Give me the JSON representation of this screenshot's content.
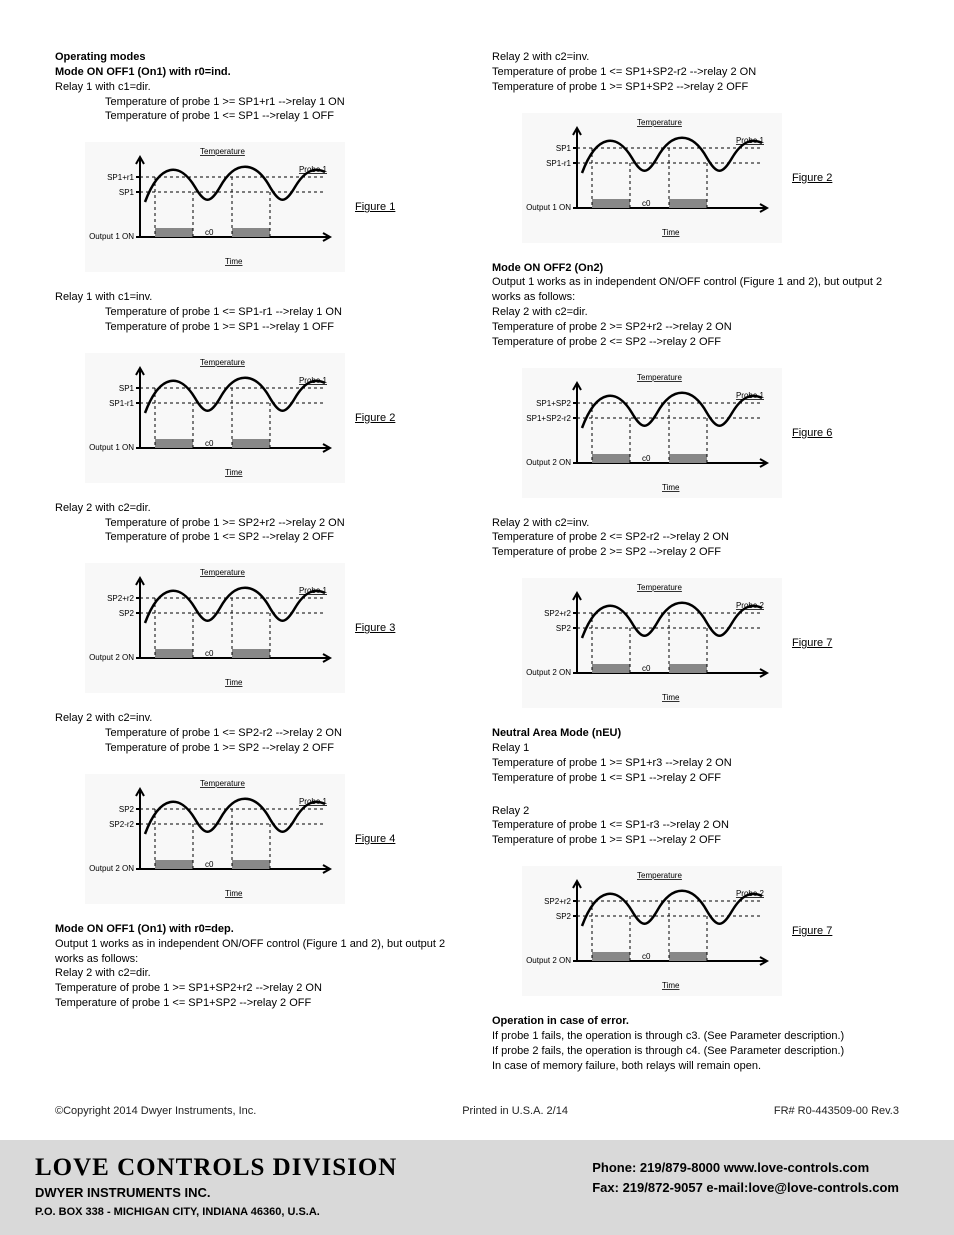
{
  "left": {
    "h1": "Operating modes",
    "h2": "Mode ON OFF1 (On1) with r0=ind.",
    "s1_relay": "Relay 1 with c1=dir.",
    "s1_l1": "Temperature of probe 1 >= SP1+r1 -->relay 1 ON",
    "s1_l2": "Temperature of probe 1 <= SP1 -->relay 1 OFF",
    "s2_relay": "Relay 1 with c1=inv.",
    "s2_l1": "Temperature of probe 1 <= SP1-r1 -->relay 1 ON",
    "s2_l2": "Temperature of probe 1 >= SP1 -->relay 1 OFF",
    "s3_relay": "Relay 2 with c2=dir.",
    "s3_l1": "Temperature of probe 1 >= SP2+r2 -->relay 2 ON",
    "s3_l2": "Temperature of probe 1 <= SP2 -->relay 2 OFF",
    "s4_relay": "Relay 2 with c2=inv.",
    "s4_l1": "Temperature of probe 1 <= SP2-r2 -->relay 2 ON",
    "s4_l2": "Temperature of probe 1 >= SP2 -->relay 2 OFF",
    "h3": "Mode ON OFF1 (On1) with r0=dep.",
    "s5_p": "Output 1 works as in independent ON/OFF control (Figure 1 and 2), but output 2 works as follows:",
    "s5_relay": "Relay 2 with c2=dir.",
    "s5_l1": "Temperature of probe 1 >= SP1+SP2+r2 -->relay 2 ON",
    "s5_l2": "Temperature of probe 1 <= SP1+SP2 -->relay 2 OFF"
  },
  "right": {
    "s6_relay": "Relay 2 with c2=inv.",
    "s6_l1": "Temperature of probe 1 <= SP1+SP2-r2 -->relay 2 ON",
    "s6_l2": "Temperature of probe 1 >= SP1+SP2 -->relay 2 OFF",
    "h4": "Mode ON OFF2 (On2)",
    "s7_p": "Output 1 works as in independent ON/OFF control (Figure 1 and 2), but output 2 works as follows:",
    "s7_relay": "Relay 2 with c2=dir.",
    "s7_l1": "Temperature of probe 2 >= SP2+r2 -->relay 2 ON",
    "s7_l2": "Temperature of probe 2 <= SP2 -->relay 2 OFF",
    "s8_relay": "Relay 2 with c2=inv.",
    "s8_l1": "Temperature of probe 2 <= SP2-r2 -->relay 2 ON",
    "s8_l2": "Temperature of probe 2 >= SP2 -->relay 2 OFF",
    "h5": "Neutral Area Mode (nEU)",
    "s9_relay": "Relay 1",
    "s9_l1": "Temperature of probe 1 >= SP1+r3 -->relay 2 ON",
    "s9_l2": "Temperature of probe 1 <= SP1 -->relay 2 OFF",
    "s10_relay": "Relay 2",
    "s10_l1": "Temperature of probe 1 <= SP1-r3 -->relay 2 ON",
    "s10_l2": "Temperature of probe 1 >= SP1 -->relay 2 OFF",
    "h6": "Operation in case of error.",
    "err1": "If probe 1 fails, the operation is through c3. (See Parameter description.)",
    "err2": "If probe 2 fails, the operation is through c4. (See Parameter description.)",
    "err3": "In case of memory failure, both relays will remain open."
  },
  "figures": {
    "f1": {
      "label": "Figure 1",
      "yhi": "SP1+r1",
      "ylo": "SP1",
      "out": "Output 1 ON",
      "probe": "Probe 1"
    },
    "f2a": {
      "label": "Figure 2",
      "yhi": "SP1",
      "ylo": "SP1-r1",
      "out": "Output 1 ON",
      "probe": "Probe 1"
    },
    "f3": {
      "label": "Figure 3",
      "yhi": "SP2+r2",
      "ylo": "SP2",
      "out": "Output 2 ON",
      "probe": "Probe 1"
    },
    "f4": {
      "label": "Figure 4",
      "yhi": "SP2",
      "ylo": "SP2-r2",
      "out": "Output 2 ON",
      "probe": "Probe 1"
    },
    "f2b": {
      "label": "Figure 2",
      "yhi": "SP1",
      "ylo": "SP1-r1",
      "out": "Output 1 ON",
      "probe": "Probe 1"
    },
    "f6": {
      "label": "Figure 6",
      "yhi": "SP1+SP2",
      "ylo": "SP1+SP2-r2",
      "out": "Output 2 ON",
      "probe": "Probe 1"
    },
    "f7a": {
      "label": "Figure 7",
      "yhi": "SP2+r2",
      "ylo": "SP2",
      "out": "Output 2 ON",
      "probe": "Probe 2"
    },
    "f7b": {
      "label": "Figure 7",
      "yhi": "SP2+r2",
      "ylo": "SP2",
      "out": "Output 2 ON",
      "probe": "Probe 2"
    },
    "temp_label": "Temperature",
    "time_label": "Time",
    "axis_color": "#000000",
    "wave_color": "#000000",
    "bar_color": "#888888",
    "bg_color": "#f8f8f8"
  },
  "copyright": {
    "left": "©Copyright 2014 Dwyer Instruments, Inc.",
    "center": "Printed in U.S.A. 2/14",
    "right": "FR# R0-443509-00 Rev.3"
  },
  "footer": {
    "company": "LOVE CONTROLS DIVISION",
    "sub1": "DWYER INSTRUMENTS INC.",
    "sub2": "P.O. BOX 338 - MICHIGAN CITY, INDIANA 46360, U.S.A.",
    "phone": "Phone: 219/879-8000 www.love-controls.com",
    "fax": "Fax: 219/872-9057 e-mail:love@love-controls.com"
  }
}
